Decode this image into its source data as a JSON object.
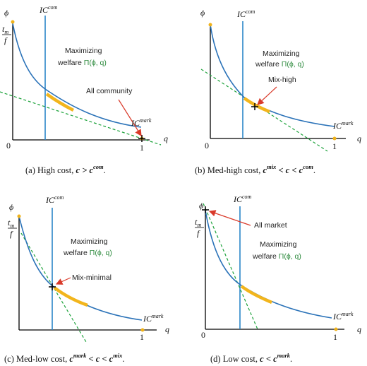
{
  "axes": {
    "y_label": "ϕ",
    "x_label": "q",
    "origin_label": "0",
    "x_one_label": "1",
    "tm_label": "t",
    "tm_sub": "m",
    "f_label": "f"
  },
  "curves": {
    "ic_com_base": "IC",
    "ic_com_sup": "com",
    "ic_mark_base": "IC",
    "ic_mark_sup": "mark"
  },
  "welfare": {
    "line1": "Maximizing",
    "line2_prefix": "welfare ",
    "line2_formula": "Π(ϕ, q)"
  },
  "colors": {
    "curve": "#2a72b8",
    "vertical": "#2a85c8",
    "tangent": "#1ea33c",
    "highlight": "#f2b51c",
    "arrow": "#d93a2a",
    "dot": "#f0b21a"
  },
  "panels": [
    {
      "annotation": "All community",
      "cap_pre": "(a) High cost, ",
      "cap_c": "c",
      "cap_rel": " > ",
      "cap_c2": "c",
      "cap_sup2": "com",
      "cap_end": "."
    },
    {
      "annotation": "Mix-high",
      "cap_pre": "(b) Med-high cost, ",
      "cap_c1": "c",
      "cap_sup1": "mix",
      "cap_rel": " < c < ",
      "cap_c2": "c",
      "cap_sup2": "com",
      "cap_end": "."
    },
    {
      "annotation": "Mix-minimal",
      "cap_pre": "(c) Med-low cost, ",
      "cap_c1": "c",
      "cap_sup1": "mark",
      "cap_rel": " < c < ",
      "cap_c2": "c",
      "cap_sup2": "mix",
      "cap_end": "."
    },
    {
      "annotation": "All market",
      "cap_pre": "(d) Low cost, ",
      "cap_c": "c",
      "cap_rel": " < ",
      "cap_c2": "c",
      "cap_sup2": "mark",
      "cap_end": "."
    }
  ]
}
